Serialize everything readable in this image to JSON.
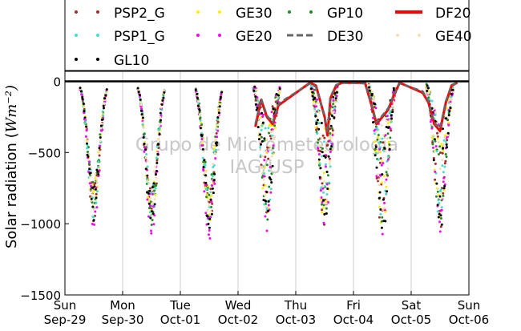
{
  "chart_data": {
    "type": "scatter",
    "title": "",
    "xlabel": "",
    "ylabel": "Solar radiation (Wm⁻²)",
    "ylim": [
      -1500,
      70
    ],
    "xlim": [
      0,
      7
    ],
    "grid": "vertical",
    "legend_placement": "top",
    "x_tick_labels": [
      {
        "x": 0,
        "day": "Sun",
        "date": "Sep-29"
      },
      {
        "x": 1,
        "day": "Mon",
        "date": "Sep-30"
      },
      {
        "x": 2,
        "day": "Tue",
        "date": "Oct-01"
      },
      {
        "x": 3,
        "day": "Wed",
        "date": "Oct-02"
      },
      {
        "x": 4,
        "day": "Thu",
        "date": "Oct-03"
      },
      {
        "x": 5,
        "day": "Fri",
        "date": "Oct-04"
      },
      {
        "x": 6,
        "day": "Sat",
        "date": "Oct-05"
      },
      {
        "x": 7,
        "day": "Sun",
        "date": "Oct-06"
      }
    ],
    "y_ticks": [
      0,
      -500,
      -1000,
      -1500
    ],
    "y_tick_labels": [
      "0",
      "−500",
      "−1000",
      "−1500"
    ],
    "watermark": [
      "Grupo de Micrometeorologia",
      "IAG/USP"
    ],
    "series": [
      {
        "name": "PSP2_G",
        "color": "#a52a2a",
        "marker": "dot",
        "peaks": [
          -950,
          -1010,
          -1000,
          -990,
          -1000,
          -1050,
          -1000
        ]
      },
      {
        "name": "GE30",
        "color": "#ffee00",
        "marker": "dot",
        "peaks": [
          -920,
          -980,
          -950,
          -960,
          -980,
          -1020,
          -990
        ]
      },
      {
        "name": "GP10",
        "color": "#228b22",
        "marker": "dot",
        "peaks": [
          -900,
          -960,
          -930,
          -940,
          -960,
          -1000,
          -980
        ]
      },
      {
        "name": "DF20",
        "color": "#ff0000",
        "marker": "line",
        "x": [
          3.3,
          3.4,
          3.5,
          3.6,
          3.7,
          3.8,
          4.25,
          4.35,
          4.5,
          4.55,
          4.6,
          4.7,
          4.8,
          5.2,
          5.3,
          5.4,
          5.5,
          5.6,
          5.7,
          5.8,
          6.2,
          6.3,
          6.4,
          6.5,
          6.6,
          6.7,
          6.8
        ],
        "y": [
          -320,
          -130,
          -250,
          -300,
          -170,
          -140,
          -10,
          -30,
          -250,
          -380,
          -120,
          -30,
          -10,
          -10,
          -150,
          -300,
          -250,
          -200,
          -100,
          -10,
          -80,
          -150,
          -300,
          -350,
          -150,
          -30,
          -10
        ]
      },
      {
        "name": "PSP1_G",
        "color": "#40e0d0",
        "marker": "dot",
        "peaks": [
          -930,
          -990,
          -960,
          -970,
          -980,
          -1030,
          -990
        ]
      },
      {
        "name": "GE20",
        "color": "#ff00ff",
        "marker": "dot",
        "peaks": [
          -1000,
          -1050,
          -1100,
          -1000,
          -1000,
          -1100,
          -1040
        ]
      },
      {
        "name": "DE30",
        "color": "#666666",
        "marker": "dashed",
        "x": [
          3.3,
          3.4,
          3.5,
          3.6,
          3.7,
          3.8,
          4.25,
          4.35,
          4.5,
          4.55,
          4.6,
          4.7,
          4.8,
          5.2,
          5.3,
          5.4,
          5.5,
          5.6,
          5.7,
          5.8,
          6.2,
          6.3,
          6.4,
          6.5,
          6.6,
          6.7,
          6.8
        ],
        "y": [
          -300,
          -120,
          -240,
          -290,
          -160,
          -130,
          -15,
          -40,
          -240,
          -360,
          -110,
          -25,
          -10,
          -15,
          -140,
          -290,
          -240,
          -190,
          -95,
          -15,
          -70,
          -140,
          -290,
          -330,
          -140,
          -25,
          -10
        ]
      },
      {
        "name": "GE40",
        "color": "#f5deb3",
        "marker": "dot",
        "peaks": [
          -880,
          -940,
          -910,
          -920,
          -940,
          -980,
          -960
        ]
      },
      {
        "name": "GL10",
        "color": "#000000",
        "marker": "dot",
        "peaks": [
          -950,
          -1000,
          -1050,
          -1000,
          -1000,
          -1080,
          -1020
        ]
      }
    ]
  }
}
